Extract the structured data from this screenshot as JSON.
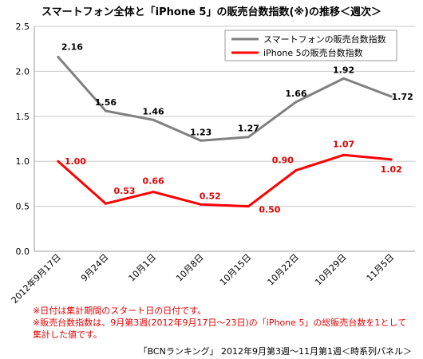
{
  "chart_data": {
    "type": "line",
    "title": "スマートフォン全体と「iPhone 5」の販売台数指数(※)の推移＜週次＞",
    "categories": [
      "2012年9月17日",
      "9月24日",
      "10月1日",
      "10月8日",
      "10月15日",
      "10月22日",
      "10月29日",
      "11月5日"
    ],
    "ylim": [
      0,
      2.5
    ],
    "yticks": [
      "0.0",
      "0.5",
      "1.0",
      "1.5",
      "2.0",
      "2.5"
    ],
    "grid": true,
    "legend_position": "top-right",
    "series": [
      {
        "name": "スマートフォンの販売台数指数",
        "color": "#808080",
        "values": [
          2.16,
          1.56,
          1.46,
          1.23,
          1.27,
          1.66,
          1.92,
          1.72
        ],
        "labels": [
          "2.16",
          "1.56",
          "1.46",
          "1.23",
          "1.27",
          "1.66",
          "1.92",
          "1.72"
        ]
      },
      {
        "name": "iPhone 5の販売台数指数",
        "color": "#ff0000",
        "values": [
          1.0,
          0.53,
          0.66,
          0.52,
          0.5,
          0.9,
          1.07,
          1.02
        ],
        "labels": [
          "1.00",
          "0.53",
          "0.66",
          "0.52",
          "0.50",
          "0.90",
          "1.07",
          "1.02"
        ]
      }
    ]
  },
  "notes": {
    "line1": "※日付は集計期間のスタート日の日付です。",
    "line2": "※販売台数指数は、9月第3週(2012年9月17日～23日)の「iPhone 5」の総販売台数を1として",
    "line3": "集計した値です。"
  },
  "source": "「BCNランキング」 2012年9月第3週～11月第1週＜時系列パネル＞"
}
